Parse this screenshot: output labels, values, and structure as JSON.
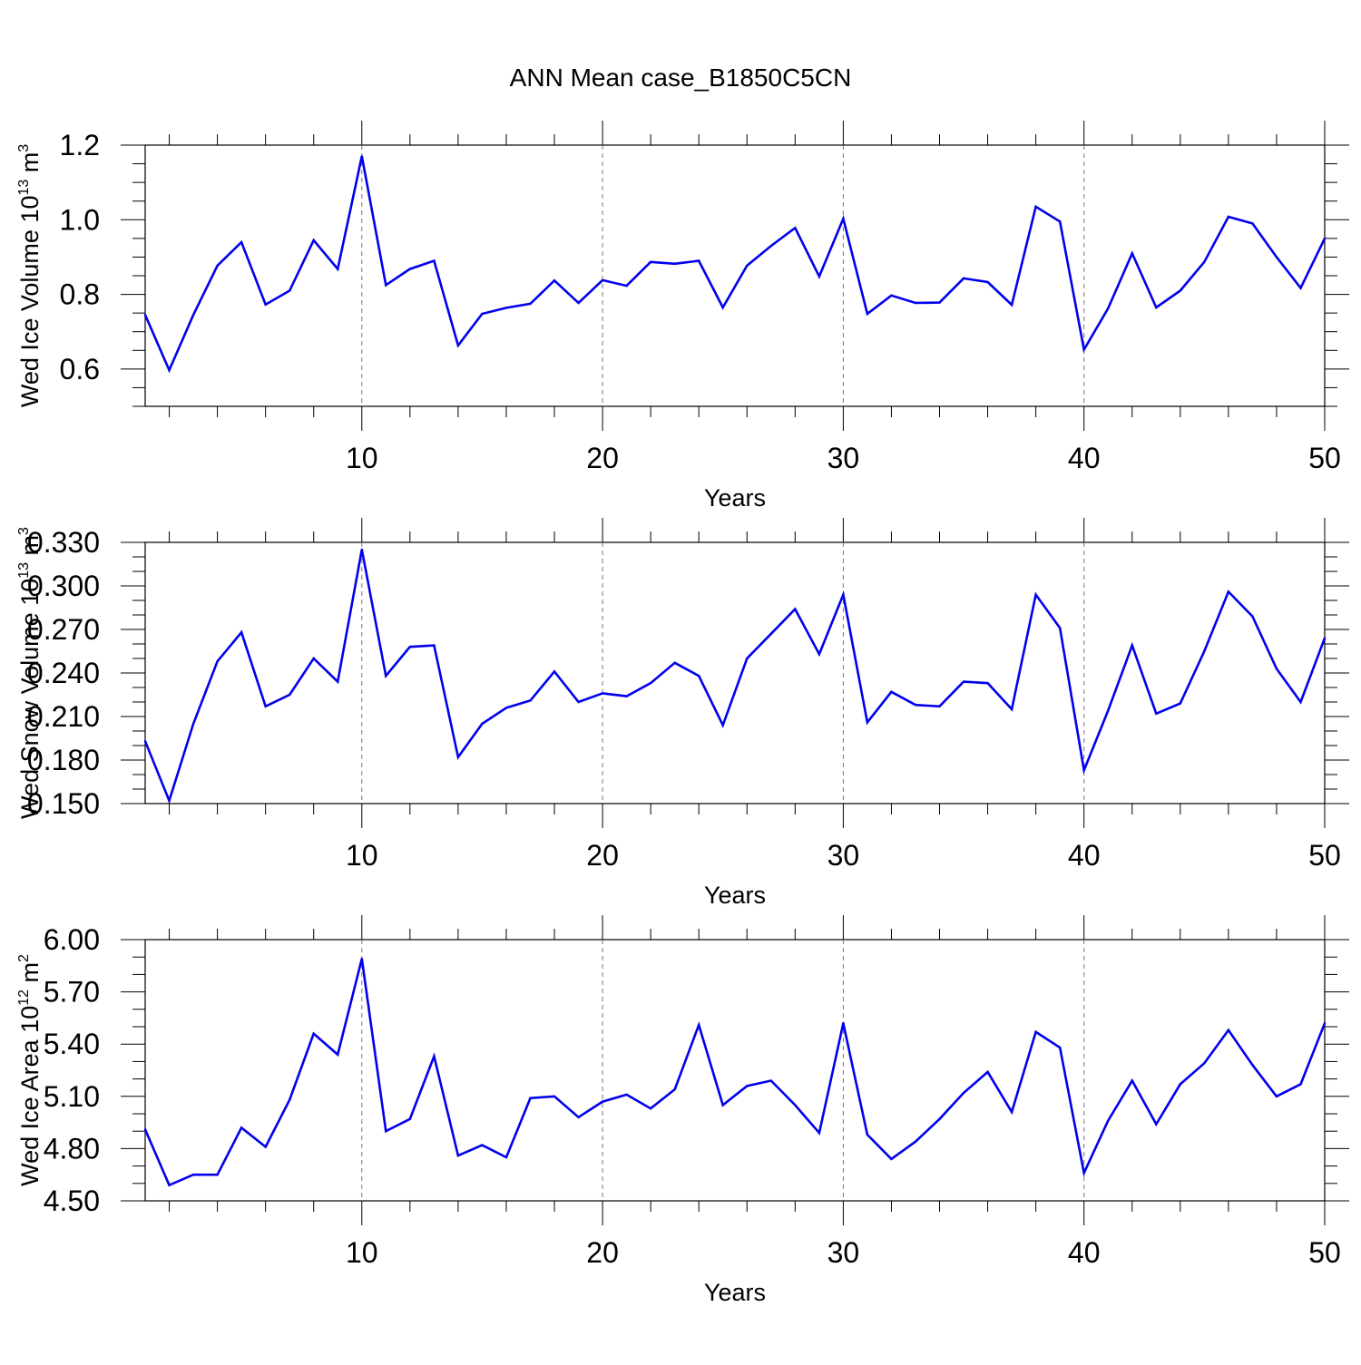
{
  "figure": {
    "title": "ANN Mean case_B1850C5CN"
  },
  "chart_data": [
    {
      "type": "line",
      "title": "ANN Mean case_B1850C5CN",
      "xlabel": "Years",
      "ylabel": "Wed Ice Volume 10",
      "ylabel_exp": "13",
      "ylabel_unit": " m",
      "ylabel_unit_exp": "3",
      "xlim": [
        1,
        50
      ],
      "ylim": [
        0.5,
        1.2
      ],
      "xticks": [
        10,
        20,
        30,
        40,
        50
      ],
      "xtick_labels": [
        "10",
        "20",
        "30",
        "40",
        "50"
      ],
      "yticks": [
        0.6,
        0.8,
        1.0,
        1.2
      ],
      "ytick_labels": [
        "0.6",
        "0.8",
        "1.0",
        "1.2"
      ],
      "y_minor_step": 0.05,
      "gridlines_x": [
        10,
        20,
        30,
        40
      ],
      "line_color": "#0000ee",
      "x": [
        1,
        2,
        3,
        4,
        5,
        6,
        7,
        8,
        9,
        10,
        11,
        12,
        13,
        14,
        15,
        16,
        17,
        18,
        19,
        20,
        21,
        22,
        23,
        24,
        25,
        26,
        27,
        28,
        29,
        30,
        31,
        32,
        33,
        34,
        35,
        36,
        37,
        38,
        39,
        40,
        41,
        42,
        43,
        44,
        45,
        46,
        47,
        48,
        49,
        50
      ],
      "values": [
        0.745,
        0.597,
        0.745,
        0.877,
        0.94,
        0.773,
        0.81,
        0.945,
        0.868,
        1.17,
        0.825,
        0.868,
        0.89,
        0.663,
        0.748,
        0.764,
        0.775,
        0.837,
        0.777,
        0.838,
        0.823,
        0.887,
        0.882,
        0.89,
        0.765,
        0.877,
        0.93,
        0.978,
        0.848,
        1.003,
        0.748,
        0.797,
        0.777,
        0.778,
        0.843,
        0.833,
        0.772,
        1.035,
        0.995,
        0.652,
        0.762,
        0.91,
        0.765,
        0.81,
        0.887,
        1.008,
        0.99,
        0.9,
        0.817,
        0.95
      ]
    },
    {
      "type": "line",
      "xlabel": "Years",
      "ylabel": "Wed Snow Volume 10",
      "ylabel_exp": "13",
      "ylabel_unit": " m",
      "ylabel_unit_exp": "3",
      "xlim": [
        1,
        50
      ],
      "ylim": [
        0.15,
        0.33
      ],
      "xticks": [
        10,
        20,
        30,
        40,
        50
      ],
      "xtick_labels": [
        "10",
        "20",
        "30",
        "40",
        "50"
      ],
      "yticks": [
        0.15,
        0.18,
        0.21,
        0.24,
        0.27,
        0.3,
        0.33
      ],
      "ytick_labels": [
        "0.150",
        "0.180",
        "0.210",
        "0.240",
        "0.270",
        "0.300",
        "0.330"
      ],
      "y_minor_step": 0.01,
      "gridlines_x": [
        10,
        20,
        30,
        40
      ],
      "line_color": "#0000ee",
      "x": [
        1,
        2,
        3,
        4,
        5,
        6,
        7,
        8,
        9,
        10,
        11,
        12,
        13,
        14,
        15,
        16,
        17,
        18,
        19,
        20,
        21,
        22,
        23,
        24,
        25,
        26,
        27,
        28,
        29,
        30,
        31,
        32,
        33,
        34,
        35,
        36,
        37,
        38,
        39,
        40,
        41,
        42,
        43,
        44,
        45,
        46,
        47,
        48,
        49,
        50
      ],
      "values": [
        0.193,
        0.152,
        0.205,
        0.248,
        0.268,
        0.217,
        0.225,
        0.25,
        0.234,
        0.325,
        0.238,
        0.258,
        0.259,
        0.182,
        0.205,
        0.216,
        0.221,
        0.241,
        0.22,
        0.226,
        0.224,
        0.233,
        0.247,
        0.238,
        0.204,
        0.25,
        0.267,
        0.284,
        0.253,
        0.294,
        0.206,
        0.227,
        0.218,
        0.217,
        0.234,
        0.233,
        0.215,
        0.294,
        0.271,
        0.173,
        0.214,
        0.259,
        0.212,
        0.219,
        0.255,
        0.296,
        0.279,
        0.243,
        0.22,
        0.264
      ]
    },
    {
      "type": "line",
      "xlabel": "Years",
      "ylabel": "Wed Ice Area 10",
      "ylabel_exp": "12",
      "ylabel_unit": " m",
      "ylabel_unit_exp": "2",
      "xlim": [
        1,
        50
      ],
      "ylim": [
        4.5,
        6.0
      ],
      "xticks": [
        10,
        20,
        30,
        40,
        50
      ],
      "xtick_labels": [
        "10",
        "20",
        "30",
        "40",
        "50"
      ],
      "yticks": [
        4.5,
        4.8,
        5.1,
        5.4,
        5.7,
        6.0
      ],
      "ytick_labels": [
        "4.50",
        "4.80",
        "5.10",
        "5.40",
        "5.70",
        "6.00"
      ],
      "y_minor_step": 0.1,
      "gridlines_x": [
        10,
        20,
        30,
        40
      ],
      "line_color": "#0000ee",
      "x": [
        1,
        2,
        3,
        4,
        5,
        6,
        7,
        8,
        9,
        10,
        11,
        12,
        13,
        14,
        15,
        16,
        17,
        18,
        19,
        20,
        21,
        22,
        23,
        24,
        25,
        26,
        27,
        28,
        29,
        30,
        31,
        32,
        33,
        34,
        35,
        36,
        37,
        38,
        39,
        40,
        41,
        42,
        43,
        44,
        45,
        46,
        47,
        48,
        49,
        50
      ],
      "values": [
        4.91,
        4.59,
        4.65,
        4.65,
        4.92,
        4.81,
        5.08,
        5.46,
        5.34,
        5.89,
        4.9,
        4.97,
        5.33,
        4.76,
        4.82,
        4.75,
        5.09,
        5.1,
        4.98,
        5.07,
        5.11,
        5.03,
        5.14,
        5.51,
        5.05,
        5.16,
        5.19,
        5.05,
        4.89,
        5.52,
        4.88,
        4.74,
        4.84,
        4.97,
        5.12,
        5.24,
        5.01,
        5.47,
        5.38,
        4.66,
        4.96,
        5.19,
        4.94,
        5.17,
        5.29,
        5.48,
        5.28,
        5.1,
        5.17,
        5.52
      ]
    }
  ]
}
